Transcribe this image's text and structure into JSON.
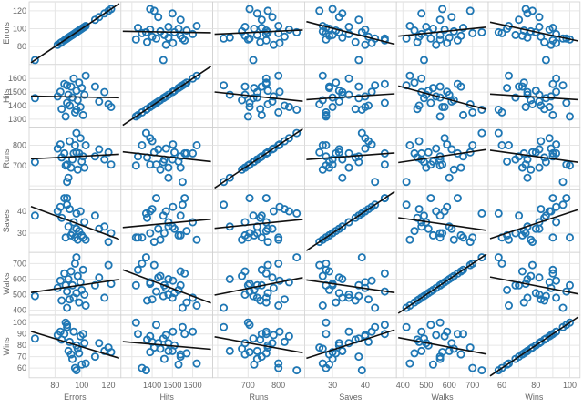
{
  "colors": {
    "point": "#1f77b4",
    "trend": "#111111",
    "grid": "#e6e6e6",
    "border": "#d0d0d0",
    "text": "#666666"
  },
  "chart_data": {
    "type": "scatter",
    "subtype": "scatter-matrix",
    "variables": [
      "Errors",
      "Hits",
      "Runs",
      "Saves",
      "Walks",
      "Wins"
    ],
    "grid": true,
    "trend_lines": true,
    "axes": {
      "Errors": {
        "range": [
          62,
          128
        ],
        "ticks": [
          80,
          100,
          120
        ],
        "tick_labels": [
          "80",
          "100",
          "120"
        ]
      },
      "Hits": {
        "range": [
          1255,
          1690
        ],
        "ticks": [
          1300,
          1400,
          1500,
          1600
        ],
        "tick_labels_y": [
          "1300",
          "1400",
          "1500",
          "1600"
        ],
        "tick_labels_x": [
          "1400",
          "1500",
          "1600"
        ]
      },
      "Runs": {
        "range": [
          590,
          880
        ],
        "ticks": [
          600,
          700,
          800
        ],
        "tick_labels_y": [
          "700",
          "800"
        ],
        "tick_labels_x": [
          "700",
          "800"
        ]
      },
      "Saves": {
        "range": [
          22,
          49
        ],
        "ticks": [
          30,
          40
        ],
        "tick_labels": [
          "30",
          "40"
        ]
      },
      "Walks": {
        "range": [
          380,
          760
        ],
        "ticks": [
          400,
          500,
          600,
          700
        ],
        "tick_labels": [
          "400",
          "500",
          "600",
          "700"
        ]
      },
      "Wins": {
        "range": [
          53,
          105
        ],
        "ticks": [
          60,
          70,
          80,
          90,
          100
        ],
        "tick_labels_y": [
          "60",
          "70",
          "80",
          "90",
          "100"
        ],
        "tick_labels_x": [
          "60",
          "80",
          "100"
        ]
      }
    },
    "records": [
      {
        "Errors": 65,
        "Hits": 1455,
        "Runs": 717,
        "Saves": 38,
        "Walks": 491,
        "Wins": 86
      },
      {
        "Errors": 82,
        "Hits": 1468,
        "Runs": 784,
        "Saves": 40,
        "Walks": 543,
        "Wins": 89
      },
      {
        "Errors": 84,
        "Hits": 1502,
        "Runs": 804,
        "Saves": 42,
        "Walks": 590,
        "Wins": 92
      },
      {
        "Errors": 85,
        "Hits": 1375,
        "Runs": 740,
        "Saves": 37,
        "Walks": 462,
        "Wins": 85
      },
      {
        "Errors": 87,
        "Hits": 1560,
        "Runs": 760,
        "Saves": 46,
        "Walks": 636,
        "Wins": 90
      },
      {
        "Errors": 88,
        "Hits": 1320,
        "Runs": 700,
        "Saves": 28,
        "Walks": 560,
        "Wins": 100
      },
      {
        "Errors": 89,
        "Hits": 1420,
        "Runs": 705,
        "Saves": 46,
        "Walks": 520,
        "Wins": 98
      },
      {
        "Errors": 90,
        "Hits": 1480,
        "Runs": 640,
        "Saves": 33,
        "Walks": 600,
        "Wins": 75
      },
      {
        "Errors": 91,
        "Hits": 1400,
        "Runs": 820,
        "Saves": 41,
        "Walks": 470,
        "Wins": 83
      },
      {
        "Errors": 92,
        "Hits": 1540,
        "Runs": 690,
        "Saves": 29,
        "Walks": 650,
        "Wins": 72
      },
      {
        "Errors": 93,
        "Hits": 1460,
        "Runs": 730,
        "Saves": 30,
        "Walks": 560,
        "Wins": 68
      },
      {
        "Errors": 94,
        "Hits": 1600,
        "Runs": 760,
        "Saves": 35,
        "Walks": 480,
        "Wins": 92
      },
      {
        "Errors": 95,
        "Hits": 1350,
        "Runs": 800,
        "Saves": 28,
        "Walks": 700,
        "Wins": 60
      },
      {
        "Errors": 96,
        "Hits": 1510,
        "Runs": 765,
        "Saves": 32,
        "Walks": 510,
        "Wins": 80
      },
      {
        "Errors": 97,
        "Hits": 1440,
        "Runs": 680,
        "Saves": 27,
        "Walks": 620,
        "Wins": 77
      },
      {
        "Errors": 98,
        "Hits": 1570,
        "Runs": 760,
        "Saves": 31,
        "Walks": 450,
        "Wins": 73
      },
      {
        "Errors": 99,
        "Hits": 1390,
        "Runs": 835,
        "Saves": 40,
        "Walks": 580,
        "Wins": 88
      },
      {
        "Errors": 100,
        "Hits": 1530,
        "Runs": 720,
        "Saves": 29,
        "Walks": 530,
        "Wins": 63
      },
      {
        "Errors": 101,
        "Hits": 1330,
        "Runs": 745,
        "Saves": 28,
        "Walks": 660,
        "Wins": 90
      },
      {
        "Errors": 102,
        "Hits": 1480,
        "Runs": 690,
        "Saves": 35,
        "Walks": 500,
        "Wins": 82
      },
      {
        "Errors": 103,
        "Hits": 1620,
        "Runs": 800,
        "Saves": 27,
        "Walks": 430,
        "Wins": 64
      },
      {
        "Errors": 110,
        "Hits": 1540,
        "Runs": 745,
        "Saves": 38,
        "Walks": 560,
        "Wins": 70
      },
      {
        "Errors": 113,
        "Hits": 1430,
        "Runs": 780,
        "Saves": 32,
        "Walks": 610,
        "Wins": 82
      },
      {
        "Errors": 117,
        "Hits": 1500,
        "Runs": 730,
        "Saves": 33,
        "Walks": 480,
        "Wins": 75
      },
      {
        "Errors": 120,
        "Hits": 1410,
        "Runs": 765,
        "Saves": 26,
        "Walks": 690,
        "Wins": 78
      },
      {
        "Errors": 122,
        "Hits": 1390,
        "Runs": 705,
        "Saves": 30,
        "Walks": 570,
        "Wins": 74
      },
      {
        "Errors": 89,
        "Hits": 1550,
        "Runs": 620,
        "Saves": 43,
        "Walks": 415,
        "Wins": 96
      },
      {
        "Errors": 96,
        "Hits": 1370,
        "Runs": 860,
        "Saves": 39,
        "Walks": 740,
        "Wins": 58
      }
    ]
  }
}
